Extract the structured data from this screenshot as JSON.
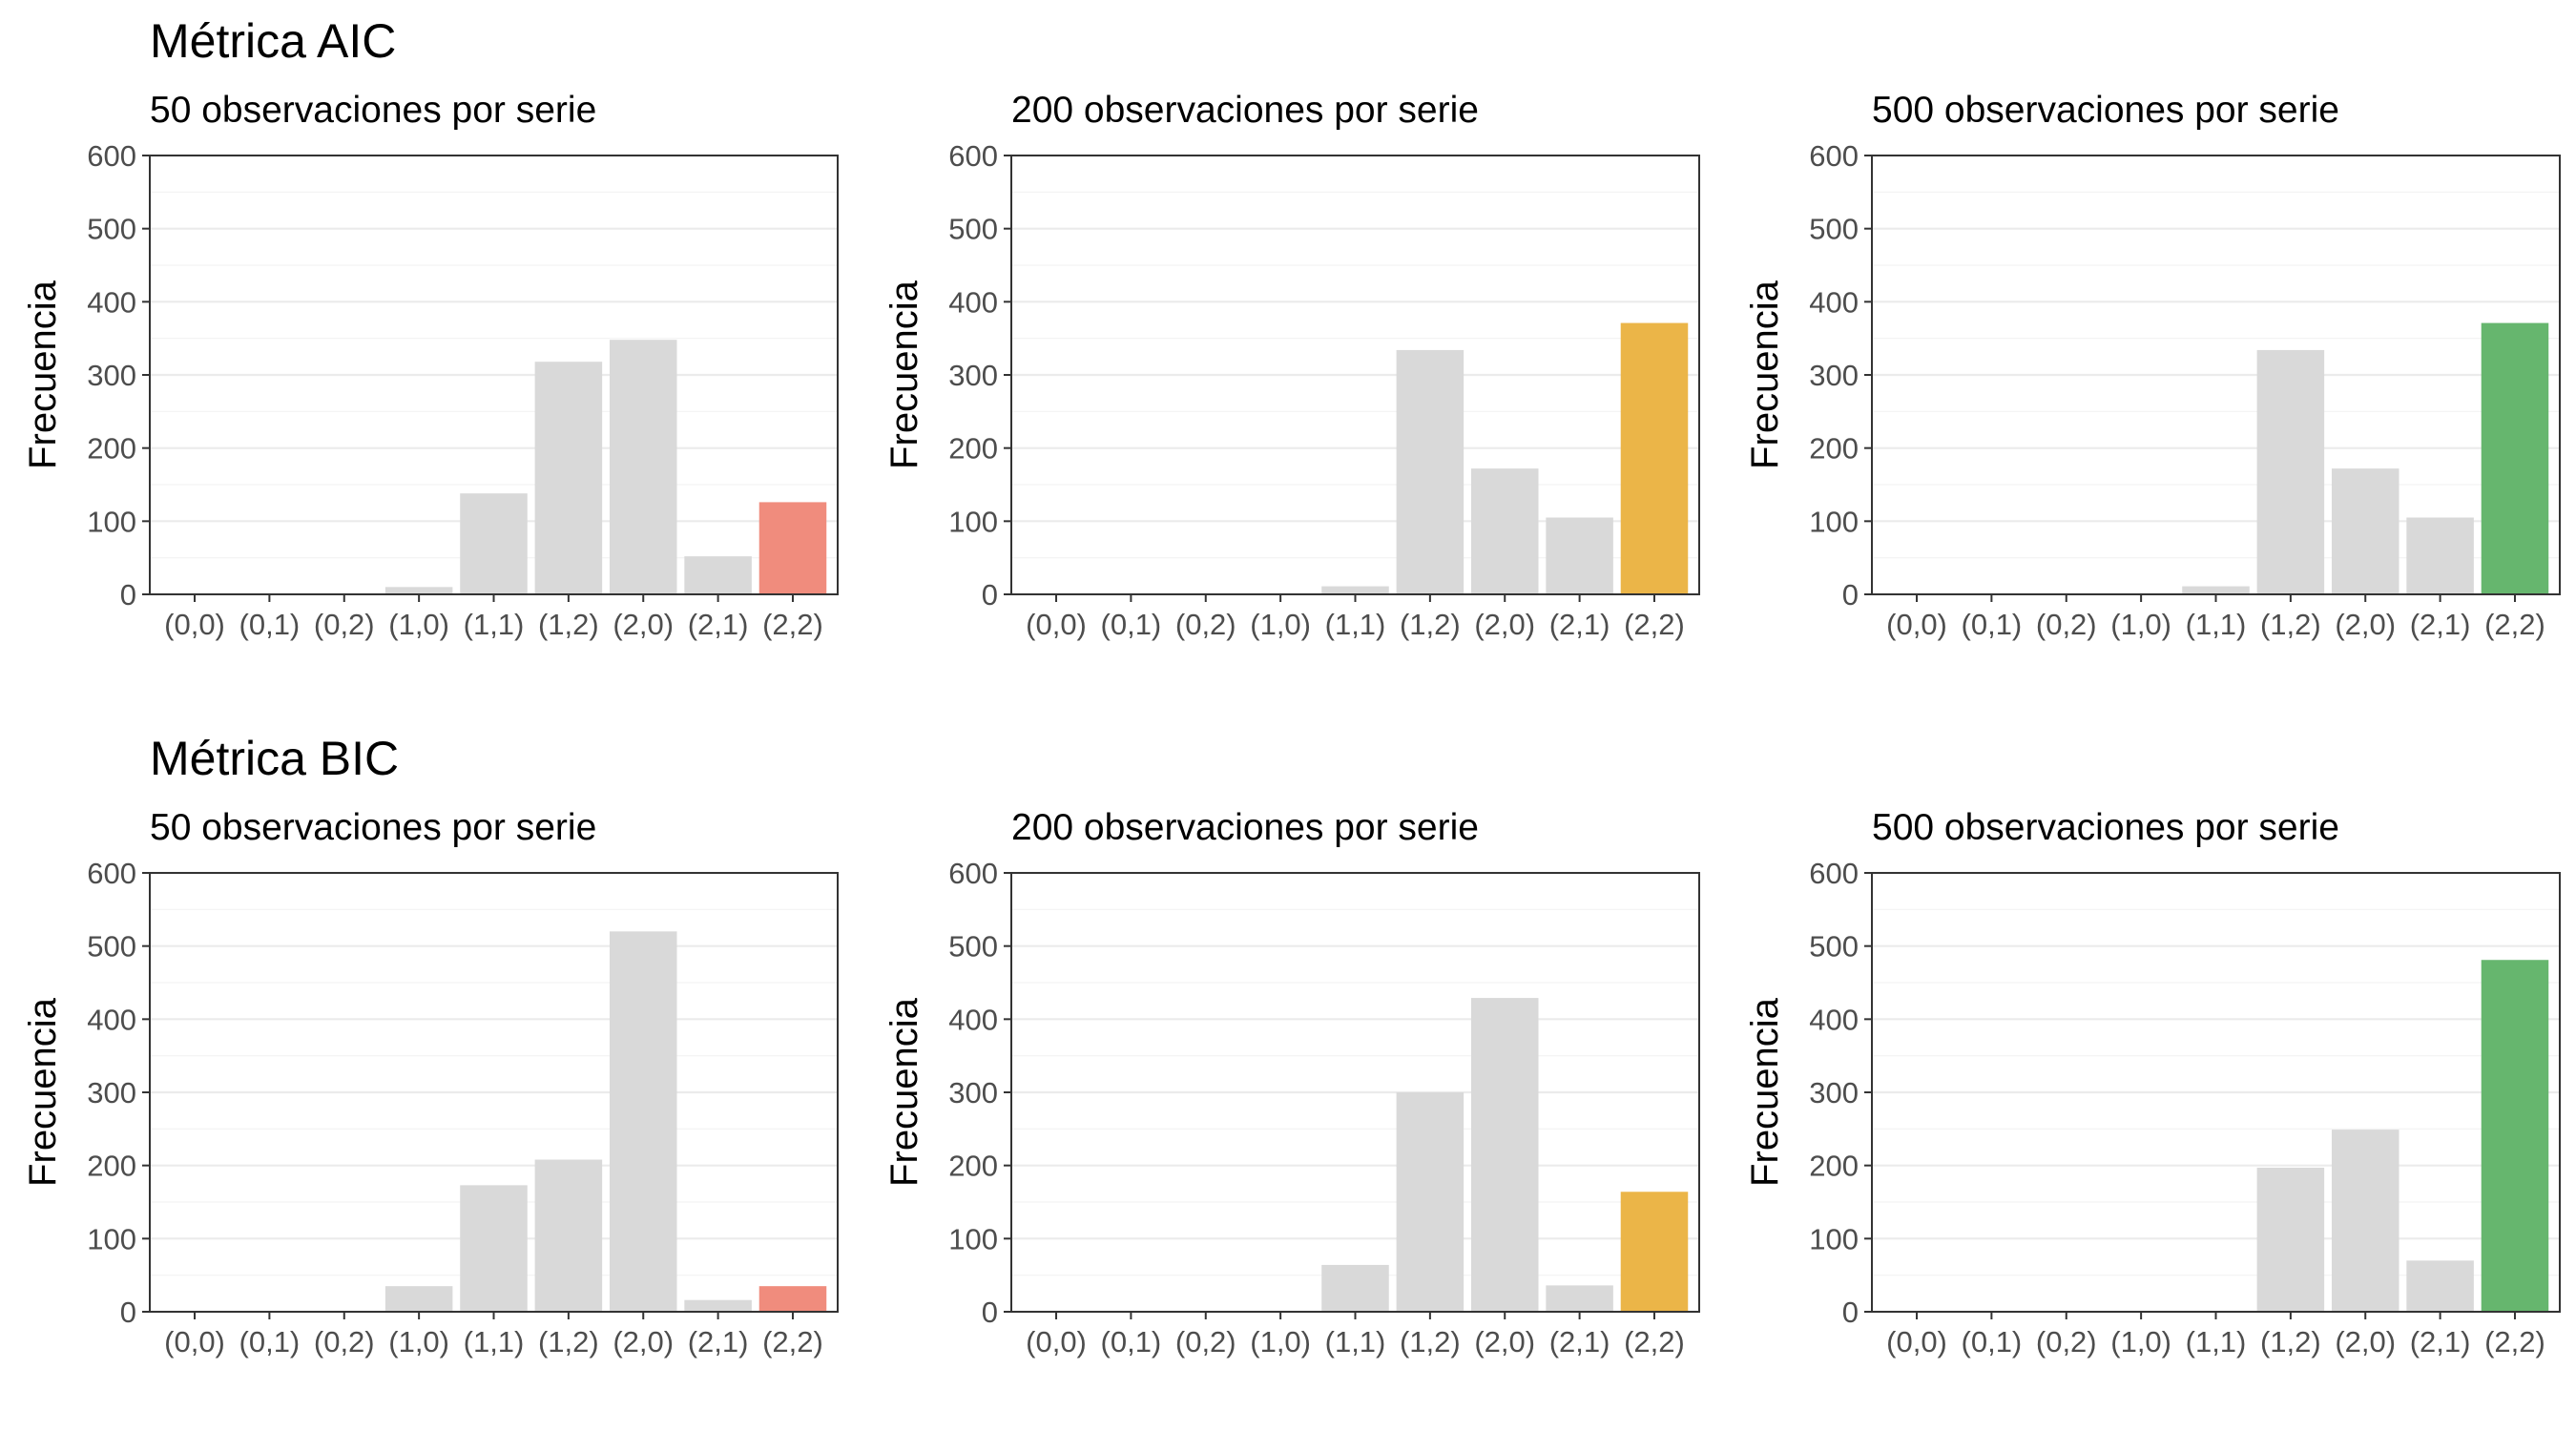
{
  "rows": [
    {
      "title": "Métrica AIC"
    },
    {
      "title": "Métrica BIC"
    }
  ],
  "colors": {
    "default_bar": "#d9d9d9",
    "highlight_50": "#f08c7d",
    "highlight_200": "#ebb548",
    "highlight_500": "#66b66e"
  },
  "chart_data": [
    {
      "type": "bar",
      "group": "Métrica AIC",
      "subtitle": "50 observaciones por serie",
      "ylabel": "Frecuencia",
      "ylim": [
        0,
        600
      ],
      "yticks": [
        0,
        100,
        200,
        300,
        400,
        500,
        600
      ],
      "categories": [
        "(0,0)",
        "(0,1)",
        "(0,2)",
        "(1,0)",
        "(1,1)",
        "(1,2)",
        "(2,0)",
        "(2,1)",
        "(2,2)"
      ],
      "values": [
        0,
        0,
        0,
        10,
        138,
        318,
        348,
        52,
        126
      ],
      "highlight": "(2,2)",
      "highlight_color": "#f08c7d",
      "grid": true
    },
    {
      "type": "bar",
      "group": "Métrica AIC",
      "subtitle": "200 observaciones por serie",
      "ylabel": "Frecuencia",
      "ylim": [
        0,
        600
      ],
      "yticks": [
        0,
        100,
        200,
        300,
        400,
        500,
        600
      ],
      "categories": [
        "(0,0)",
        "(0,1)",
        "(0,2)",
        "(1,0)",
        "(1,1)",
        "(1,2)",
        "(2,0)",
        "(2,1)",
        "(2,2)"
      ],
      "values": [
        0,
        0,
        0,
        0,
        11,
        334,
        172,
        105,
        371
      ],
      "highlight": "(2,2)",
      "highlight_color": "#ebb548",
      "grid": true
    },
    {
      "type": "bar",
      "group": "Métrica AIC",
      "subtitle": "500 observaciones por serie",
      "ylabel": "Frecuencia",
      "ylim": [
        0,
        600
      ],
      "yticks": [
        0,
        100,
        200,
        300,
        400,
        500,
        600
      ],
      "categories": [
        "(0,0)",
        "(0,1)",
        "(0,2)",
        "(1,0)",
        "(1,1)",
        "(1,2)",
        "(2,0)",
        "(2,1)",
        "(2,2)"
      ],
      "values": [
        0,
        0,
        0,
        0,
        11,
        334,
        172,
        105,
        371
      ],
      "highlight": "(2,2)",
      "highlight_color": "#66b66e",
      "grid": true
    },
    {
      "type": "bar",
      "group": "Métrica BIC",
      "subtitle": "50 observaciones por serie",
      "ylabel": "Frecuencia",
      "ylim": [
        0,
        600
      ],
      "yticks": [
        0,
        100,
        200,
        300,
        400,
        500,
        600
      ],
      "categories": [
        "(0,0)",
        "(0,1)",
        "(0,2)",
        "(1,0)",
        "(1,1)",
        "(1,2)",
        "(2,0)",
        "(2,1)",
        "(2,2)"
      ],
      "values": [
        0,
        1,
        0,
        35,
        173,
        208,
        520,
        16,
        35
      ],
      "highlight": "(2,2)",
      "highlight_color": "#f08c7d",
      "grid": true
    },
    {
      "type": "bar",
      "group": "Métrica BIC",
      "subtitle": "200 observaciones por serie",
      "ylabel": "Frecuencia",
      "ylim": [
        0,
        600
      ],
      "yticks": [
        0,
        100,
        200,
        300,
        400,
        500,
        600
      ],
      "categories": [
        "(0,0)",
        "(0,1)",
        "(0,2)",
        "(1,0)",
        "(1,1)",
        "(1,2)",
        "(2,0)",
        "(2,1)",
        "(2,2)"
      ],
      "values": [
        0,
        0,
        0,
        0,
        64,
        300,
        429,
        36,
        164
      ],
      "highlight": "(2,2)",
      "highlight_color": "#ebb548",
      "grid": true
    },
    {
      "type": "bar",
      "group": "Métrica BIC",
      "subtitle": "500 observaciones por serie",
      "ylabel": "Frecuencia",
      "ylim": [
        0,
        600
      ],
      "yticks": [
        0,
        100,
        200,
        300,
        400,
        500,
        600
      ],
      "categories": [
        "(0,0)",
        "(0,1)",
        "(0,2)",
        "(1,0)",
        "(1,1)",
        "(1,2)",
        "(2,0)",
        "(2,1)",
        "(2,2)"
      ],
      "values": [
        0,
        0,
        0,
        0,
        0,
        197,
        249,
        70,
        481
      ],
      "highlight": "(2,2)",
      "highlight_color": "#66b66e",
      "grid": true
    }
  ]
}
